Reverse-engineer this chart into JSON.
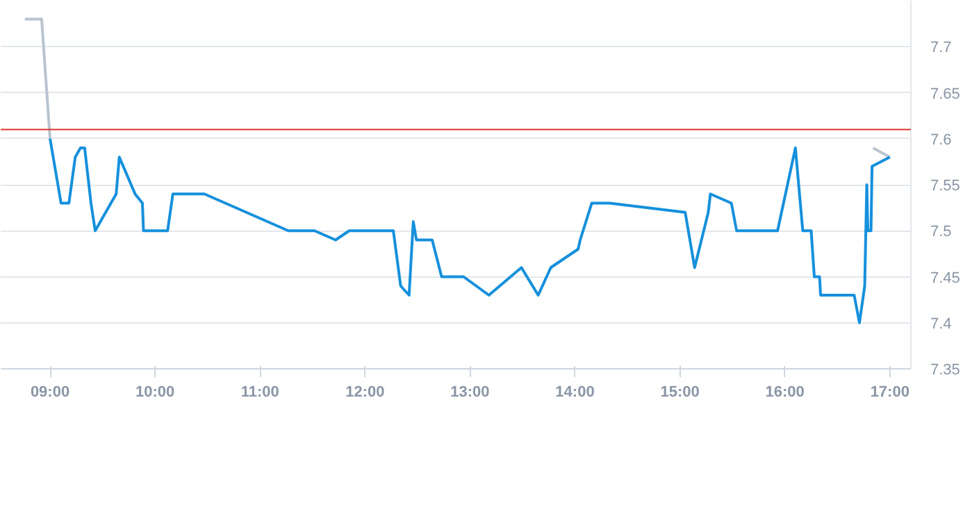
{
  "chart_data": {
    "type": "line",
    "xlim": [
      8.53,
      17.2
    ],
    "ylim": [
      7.35,
      7.75
    ],
    "xticks": [
      {
        "value": 9,
        "label": "09:00"
      },
      {
        "value": 10,
        "label": "10:00"
      },
      {
        "value": 11,
        "label": "11:00"
      },
      {
        "value": 12,
        "label": "12:00"
      },
      {
        "value": 13,
        "label": "13:00"
      },
      {
        "value": 14,
        "label": "14:00"
      },
      {
        "value": 15,
        "label": "15:00"
      },
      {
        "value": 16,
        "label": "16:00"
      },
      {
        "value": 17,
        "label": "17:00"
      }
    ],
    "yticks": [
      7.35,
      7.4,
      7.45,
      7.5,
      7.55,
      7.6,
      7.65,
      7.7
    ],
    "grid": "y",
    "marker": "none",
    "line_style": "solid",
    "ref_lines": [
      {
        "axis": "y",
        "value": 7.61,
        "color": "#d9362b"
      }
    ],
    "series": [
      {
        "color": "#b8c4d0",
        "x": [
          8.76,
          8.92,
          9.0,
          12.0,
          16.84,
          17.0
        ],
        "values": [
          7.73,
          7.73,
          7.6,
          null,
          7.59,
          7.58
        ]
      },
      {
        "color": "#1590dc",
        "x": [
          9.0,
          9.105,
          9.18,
          9.24,
          9.29,
          9.33,
          9.39,
          9.43,
          9.63,
          9.66,
          9.81,
          9.88,
          9.89,
          10.12,
          10.17,
          10.47,
          11.27,
          11.52,
          11.72,
          11.85,
          12.27,
          12.34,
          12.42,
          12.46,
          12.49,
          12.64,
          12.73,
          12.94,
          13.18,
          13.49,
          13.65,
          13.77,
          14.03,
          14.05,
          14.16,
          14.33,
          15.05,
          15.14,
          15.27,
          15.29,
          15.49,
          15.54,
          15.93,
          16.1,
          16.17,
          16.25,
          16.28,
          16.33,
          16.34,
          16.66,
          16.71,
          16.76,
          16.78,
          16.79,
          16.82,
          16.83,
          17.0
        ],
        "values": [
          7.6,
          7.53,
          7.53,
          7.58,
          7.59,
          7.59,
          7.53,
          7.5,
          7.54,
          7.58,
          7.54,
          7.53,
          7.5,
          7.5,
          7.54,
          7.54,
          7.5,
          7.5,
          7.49,
          7.5,
          7.5,
          7.44,
          7.43,
          7.51,
          7.49,
          7.49,
          7.45,
          7.45,
          7.43,
          7.46,
          7.43,
          7.46,
          7.48,
          7.49,
          7.53,
          7.53,
          7.52,
          7.46,
          7.52,
          7.54,
          7.53,
          7.5,
          7.5,
          7.59,
          7.5,
          7.5,
          7.45,
          7.45,
          7.43,
          7.43,
          7.4,
          7.44,
          7.55,
          7.5,
          7.5,
          7.57,
          7.58
        ]
      }
    ]
  }
}
